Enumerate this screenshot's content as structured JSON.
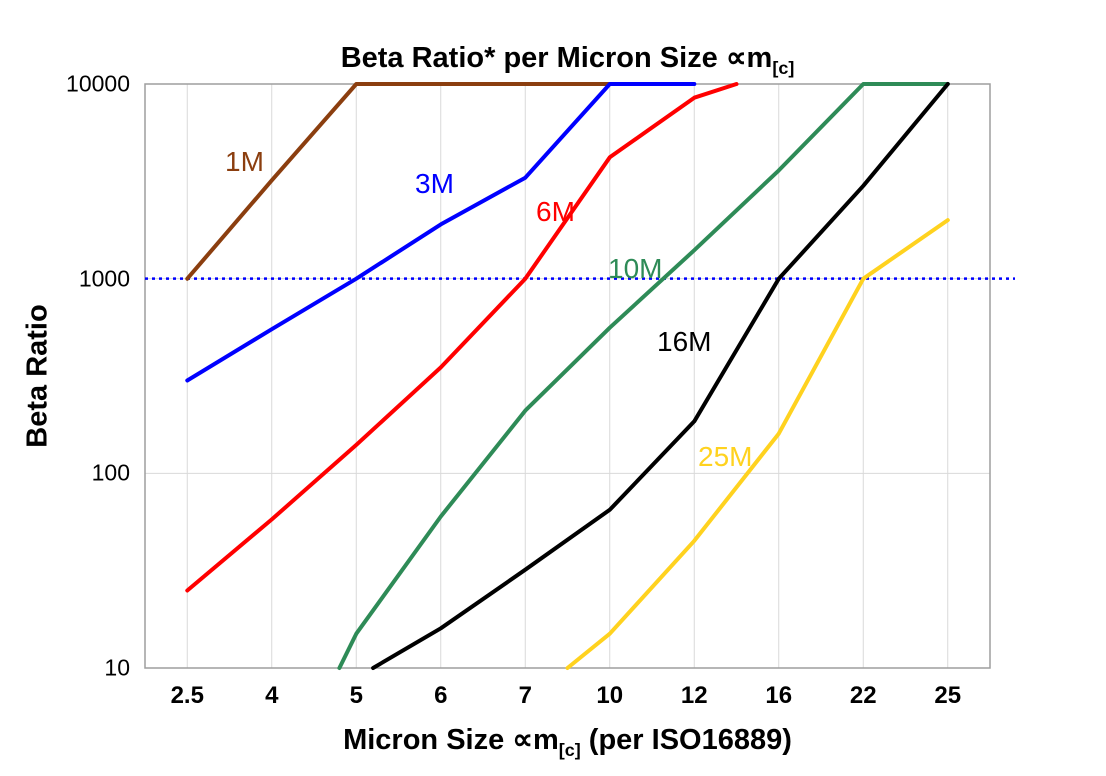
{
  "title": {
    "text": "Beta Ratio* per Micron Size ∝m",
    "subscript": "[c]"
  },
  "y_axis": {
    "label": "Beta Ratio",
    "ticks": [
      "10",
      "100",
      "1000",
      "10000"
    ],
    "scale": "log"
  },
  "x_axis": {
    "label": "Micron Size ∝m",
    "label_subscript": "[c]",
    "label_suffix": " (per ISO16889)",
    "categories": [
      "2.5",
      "4",
      "5",
      "6",
      "7",
      "10",
      "12",
      "16",
      "22",
      "25"
    ]
  },
  "reference_line": {
    "value": 1000,
    "color": "#0000ff",
    "style": "dotted"
  },
  "colors": {
    "grid": "#d9d9d9",
    "frame": "#9e9e9e",
    "text": "#000000"
  },
  "chart_data": {
    "type": "line",
    "title": "Beta Ratio* per Micron Size ∝m[c]",
    "xlabel": "Micron Size ∝m[c] (per ISO16889)",
    "ylabel": "Beta Ratio",
    "y_scale": "log",
    "ylim": [
      10,
      10000
    ],
    "grid": true,
    "x_categories": [
      2.5,
      4,
      5,
      6,
      7,
      10,
      12,
      16,
      22,
      25
    ],
    "series": [
      {
        "name": "1M",
        "color": "#8b3e0f",
        "points": [
          [
            0,
            1000
          ],
          [
            1,
            3200
          ],
          [
            2,
            10000
          ],
          [
            5,
            10000
          ]
        ]
      },
      {
        "name": "3M",
        "color": "#0000ff",
        "points": [
          [
            0,
            300
          ],
          [
            1,
            550
          ],
          [
            2,
            1000
          ],
          [
            3,
            1900
          ],
          [
            4,
            3300
          ],
          [
            5,
            10000
          ],
          [
            6,
            10000
          ]
        ]
      },
      {
        "name": "6M",
        "color": "#ff0000",
        "points": [
          [
            0,
            25
          ],
          [
            1,
            58
          ],
          [
            2,
            140
          ],
          [
            3,
            350
          ],
          [
            4,
            1000
          ],
          [
            5,
            4200
          ],
          [
            6,
            8500
          ],
          [
            6.5,
            10000
          ]
        ]
      },
      {
        "name": "10M",
        "color": "#2e8b57",
        "points": [
          [
            1.8,
            10
          ],
          [
            2,
            15
          ],
          [
            3,
            60
          ],
          [
            4,
            210
          ],
          [
            5,
            560
          ],
          [
            6,
            1400
          ],
          [
            7,
            3600
          ],
          [
            8,
            10000
          ],
          [
            9,
            10000
          ]
        ]
      },
      {
        "name": "16M",
        "color": "#000000",
        "points": [
          [
            2.2,
            10
          ],
          [
            3,
            16
          ],
          [
            4,
            32
          ],
          [
            5,
            65
          ],
          [
            6,
            185
          ],
          [
            7,
            1000
          ],
          [
            8,
            3000
          ],
          [
            9,
            10000
          ]
        ]
      },
      {
        "name": "25M",
        "color": "#ffd21f",
        "points": [
          [
            4.5,
            10
          ],
          [
            5,
            15
          ],
          [
            6,
            45
          ],
          [
            7,
            160
          ],
          [
            8,
            1000
          ],
          [
            9,
            2000
          ]
        ]
      }
    ]
  }
}
